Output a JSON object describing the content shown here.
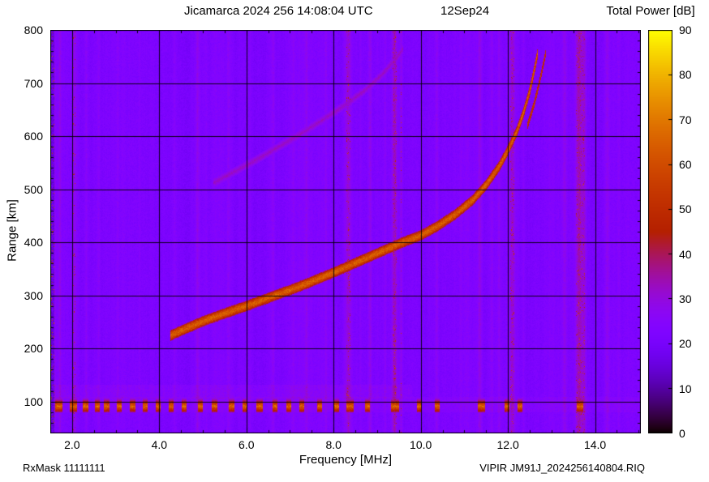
{
  "colors": {
    "background": "#ffffff",
    "text": "#000000"
  },
  "header": {
    "title": "Jicamarca 2024 256 14:08:04 UTC",
    "date": "12Sep24",
    "colorbar_title": "Total Power [dB]"
  },
  "footer": {
    "left": "RxMask 11111111",
    "xlabel": "Frequency [MHz]",
    "right": "VIPIR JM91J_2024256140804.RIQ"
  },
  "chart_data": {
    "type": "heatmap",
    "subtype": "ionogram",
    "title": "Jicamarca 2024 256 14:08:04 UTC",
    "date_label": "12Sep24",
    "xlabel": "Frequency [MHz]",
    "ylabel": "Range [km]",
    "xlim": [
      1.5,
      15.05
    ],
    "ylim": [
      40,
      800
    ],
    "xticks": [
      2.0,
      4.0,
      6.0,
      8.0,
      10.0,
      12.0,
      14.0
    ],
    "xtick_labels": [
      "2.0",
      "4.0",
      "6.0",
      "8.0",
      "10.0",
      "12.0",
      "14.0"
    ],
    "yticks": [
      100,
      200,
      300,
      400,
      500,
      600,
      700,
      800
    ],
    "ytick_labels": [
      "100",
      "200",
      "300",
      "400",
      "500",
      "600",
      "700",
      "800"
    ],
    "x_minor_step": 0.5,
    "y_minor_step": 20,
    "grid": true,
    "colorbar": {
      "label": "Total Power [dB]",
      "min": 0,
      "max": 90,
      "ticks": [
        0,
        10,
        20,
        30,
        40,
        50,
        60,
        70,
        80,
        90
      ],
      "colormap": "gnuplot-pm3d black-violet-magenta-red-orange-yellow"
    },
    "noise_floor_db": 22,
    "left_noise": {
      "f_max": 2.9,
      "db_per_mhz": 1.5
    },
    "edge_column": {
      "f_max": 1.6,
      "base_db": 12,
      "spike_prob": 0.06,
      "spike_db": 40
    },
    "e_region_band": {
      "range_km": [
        106,
        132
      ],
      "f_max": 9.8,
      "db_above_noise": 2.5
    },
    "ground_clutter_band": {
      "range_km": [
        80,
        108
      ],
      "db_above_noise": 2
    },
    "echo_trace_o_mode": {
      "peak_db": 64,
      "halfwidth_km": 10,
      "points": [
        [
          4.25,
          224
        ],
        [
          4.6,
          237
        ],
        [
          5.0,
          251
        ],
        [
          5.5,
          266
        ],
        [
          6.0,
          280
        ],
        [
          6.5,
          295
        ],
        [
          7.0,
          310
        ],
        [
          7.5,
          326
        ],
        [
          8.0,
          343
        ],
        [
          8.5,
          361
        ],
        [
          9.0,
          379
        ],
        [
          9.5,
          397
        ],
        [
          10.0,
          413
        ],
        [
          10.4,
          431
        ],
        [
          10.8,
          453
        ],
        [
          11.2,
          480
        ],
        [
          11.5,
          508
        ],
        [
          11.8,
          543
        ],
        [
          12.0,
          573
        ],
        [
          12.2,
          608
        ],
        [
          12.35,
          642
        ],
        [
          12.5,
          685
        ],
        [
          12.6,
          722
        ],
        [
          12.68,
          755
        ]
      ]
    },
    "echo_trace_x_mode": {
      "peak_db": 54,
      "halfwidth_km": 7,
      "points": [
        [
          12.45,
          620
        ],
        [
          12.6,
          660
        ],
        [
          12.72,
          700
        ],
        [
          12.82,
          738
        ],
        [
          12.88,
          762
        ]
      ]
    },
    "second_hop_trace": {
      "peak_db": 31,
      "halfwidth_km": 8,
      "points": [
        [
          5.25,
          512
        ],
        [
          5.7,
          532
        ],
        [
          6.2,
          554
        ],
        [
          6.7,
          578
        ],
        [
          7.2,
          602
        ],
        [
          7.7,
          628
        ],
        [
          8.2,
          655
        ],
        [
          8.7,
          685
        ],
        [
          9.1,
          715
        ],
        [
          9.45,
          748
        ],
        [
          9.6,
          766
        ]
      ]
    },
    "clutter_blobs_mhz": [
      [
        1.62,
        1.78
      ],
      [
        1.95,
        2.12
      ],
      [
        2.25,
        2.38
      ],
      [
        2.52,
        2.63
      ],
      [
        2.73,
        2.85
      ],
      [
        3.02,
        3.13
      ],
      [
        3.32,
        3.45
      ],
      [
        3.62,
        3.73
      ],
      [
        3.92,
        4.03
      ],
      [
        4.22,
        4.33
      ],
      [
        4.52,
        4.63
      ],
      [
        4.88,
        5.0
      ],
      [
        5.2,
        5.33
      ],
      [
        5.6,
        5.72
      ],
      [
        5.92,
        6.03
      ],
      [
        6.22,
        6.38
      ],
      [
        6.6,
        6.72
      ],
      [
        6.92,
        7.03
      ],
      [
        7.22,
        7.33
      ],
      [
        7.62,
        7.73
      ],
      [
        8.0,
        8.13
      ],
      [
        8.3,
        8.46
      ],
      [
        8.72,
        8.83
      ],
      [
        9.32,
        9.5
      ],
      [
        9.92,
        10.03
      ],
      [
        10.32,
        10.43
      ],
      [
        11.3,
        11.48
      ],
      [
        11.92,
        12.03
      ],
      [
        12.22,
        12.33
      ],
      [
        13.58,
        13.73
      ]
    ],
    "rfi_stripes": [
      {
        "f": 1.56,
        "w": 0.05,
        "db": 9
      },
      {
        "f": 1.72,
        "w": 0.03,
        "db": 5
      },
      {
        "f": 2.05,
        "w": 0.05,
        "db": 7
      },
      {
        "f": 2.32,
        "w": 0.03,
        "db": 4
      },
      {
        "f": 2.62,
        "w": 0.03,
        "db": 3
      },
      {
        "f": 3.05,
        "w": 0.03,
        "db": 3
      },
      {
        "f": 3.55,
        "w": 0.03,
        "db": 2.5
      },
      {
        "f": 4.35,
        "w": 0.03,
        "db": 3
      },
      {
        "f": 4.88,
        "w": 0.04,
        "db": 5
      },
      {
        "f": 5.58,
        "w": 0.04,
        "db": 4
      },
      {
        "f": 6.08,
        "w": 0.03,
        "db": 3
      },
      {
        "f": 6.62,
        "w": 0.04,
        "db": 5
      },
      {
        "f": 7.08,
        "w": 0.03,
        "db": 3
      },
      {
        "f": 7.38,
        "w": 0.04,
        "db": 4
      },
      {
        "f": 7.82,
        "w": 0.03,
        "db": 3.5
      },
      {
        "f": 8.34,
        "w": 0.07,
        "db": 9
      },
      {
        "f": 8.62,
        "w": 0.03,
        "db": 4
      },
      {
        "f": 8.84,
        "w": 0.04,
        "db": 6
      },
      {
        "f": 9.18,
        "w": 0.03,
        "db": 4
      },
      {
        "f": 9.4,
        "w": 0.05,
        "db": 12
      },
      {
        "f": 9.55,
        "w": 0.03,
        "db": 6
      },
      {
        "f": 10.37,
        "w": 0.04,
        "db": 5
      },
      {
        "f": 10.92,
        "w": 0.03,
        "db": 3
      },
      {
        "f": 11.36,
        "w": 0.04,
        "db": 6
      },
      {
        "f": 11.63,
        "w": 0.03,
        "db": 4
      },
      {
        "f": 11.8,
        "w": 0.03,
        "db": 4
      },
      {
        "f": 12.1,
        "w": 0.06,
        "db": 9
      },
      {
        "f": 12.36,
        "w": 0.03,
        "db": 4
      },
      {
        "f": 13.3,
        "w": 0.04,
        "db": 5
      },
      {
        "f": 13.63,
        "w": 0.08,
        "db": 11
      },
      {
        "f": 13.75,
        "w": 0.04,
        "db": 7
      },
      {
        "f": 14.27,
        "w": 0.05,
        "db": 6
      },
      {
        "f": 14.55,
        "w": 0.03,
        "db": 3
      }
    ],
    "footer_left": "RxMask 11111111",
    "footer_right": "VIPIR JM91J_2024256140804.RIQ"
  }
}
